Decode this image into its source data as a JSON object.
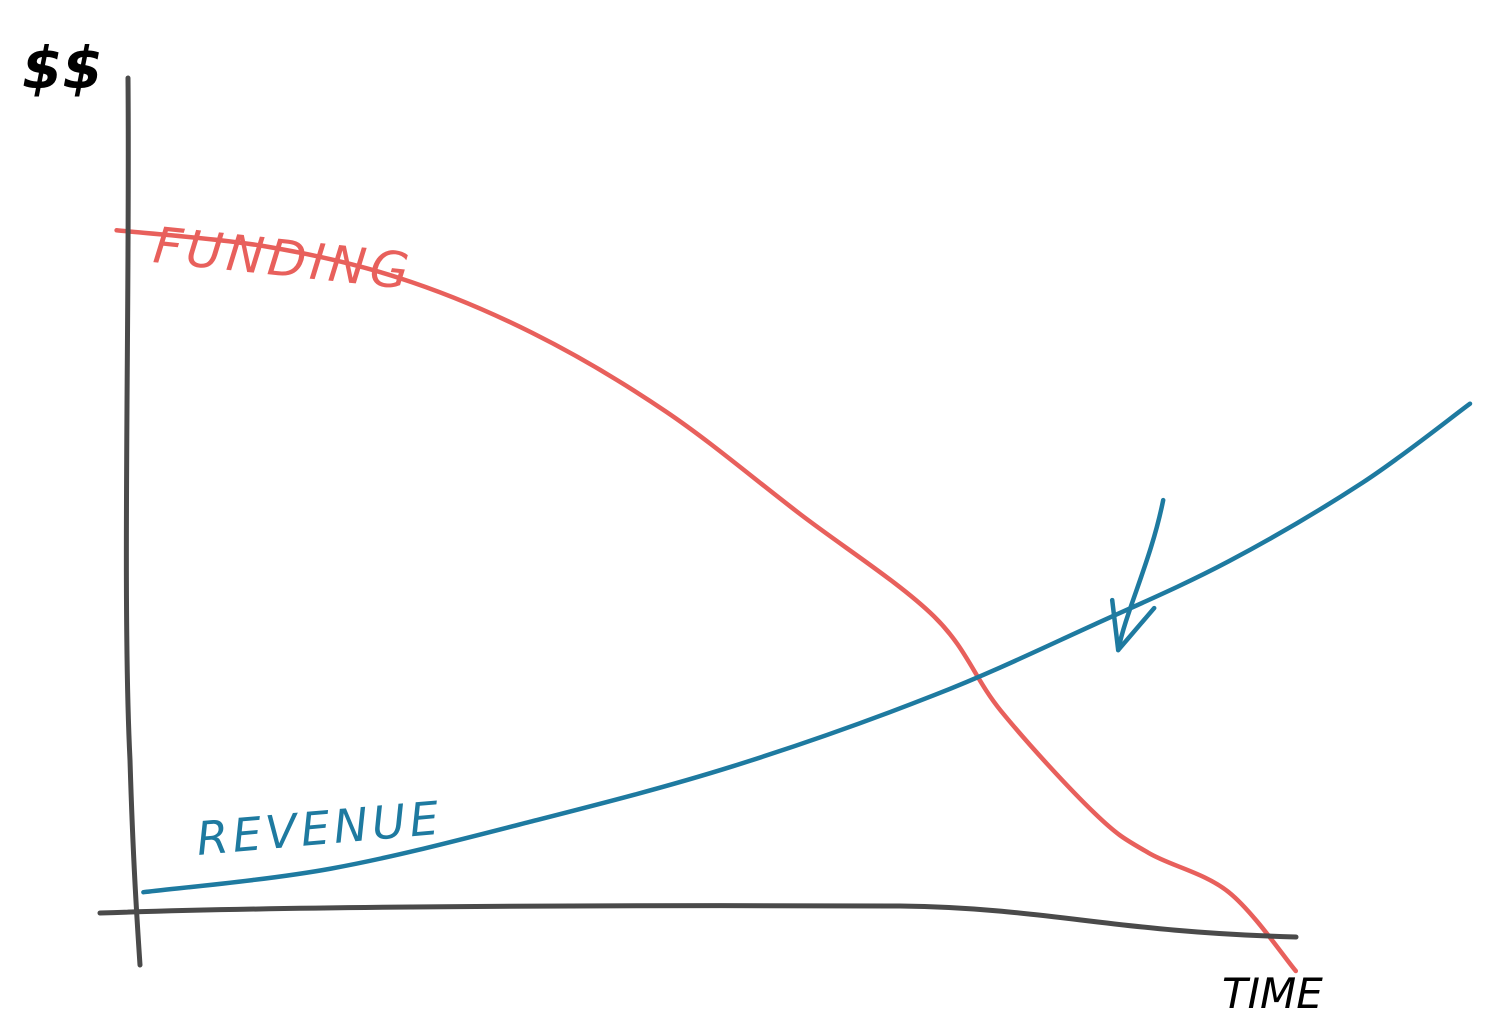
{
  "colors": {
    "axis": "#4a4a4a",
    "funding": "#e8605c",
    "revenue": "#1e7aa0",
    "annotation": "#1e7aa0"
  },
  "chart_data": {
    "type": "line",
    "style": "hand-drawn sketch",
    "title": "",
    "xlabel": "TIME",
    "ylabel": "$$",
    "ticks": "none",
    "grid": false,
    "legend": "inline labels",
    "xlim": [
      0,
      100
    ],
    "ylim": [
      0,
      100
    ],
    "series": [
      {
        "name": "FUNDING",
        "color": "#e8605c",
        "x": [
          -1,
          10,
          20,
          30,
          40,
          50,
          60,
          65,
          72,
          76,
          82,
          87
        ],
        "y": [
          86,
          84,
          80,
          73,
          63,
          50,
          37,
          25,
          12,
          7,
          2,
          -8
        ]
      },
      {
        "name": "REVENUE",
        "color": "#1e7aa0",
        "x": [
          1,
          15,
          30,
          45,
          60,
          72,
          82,
          92,
          100
        ],
        "y": [
          2,
          5,
          11,
          18,
          27,
          36,
          44,
          54,
          64
        ]
      }
    ],
    "annotations": [
      {
        "type": "arrow",
        "points_to": "crossover",
        "x": 73,
        "y": 34
      }
    ]
  }
}
